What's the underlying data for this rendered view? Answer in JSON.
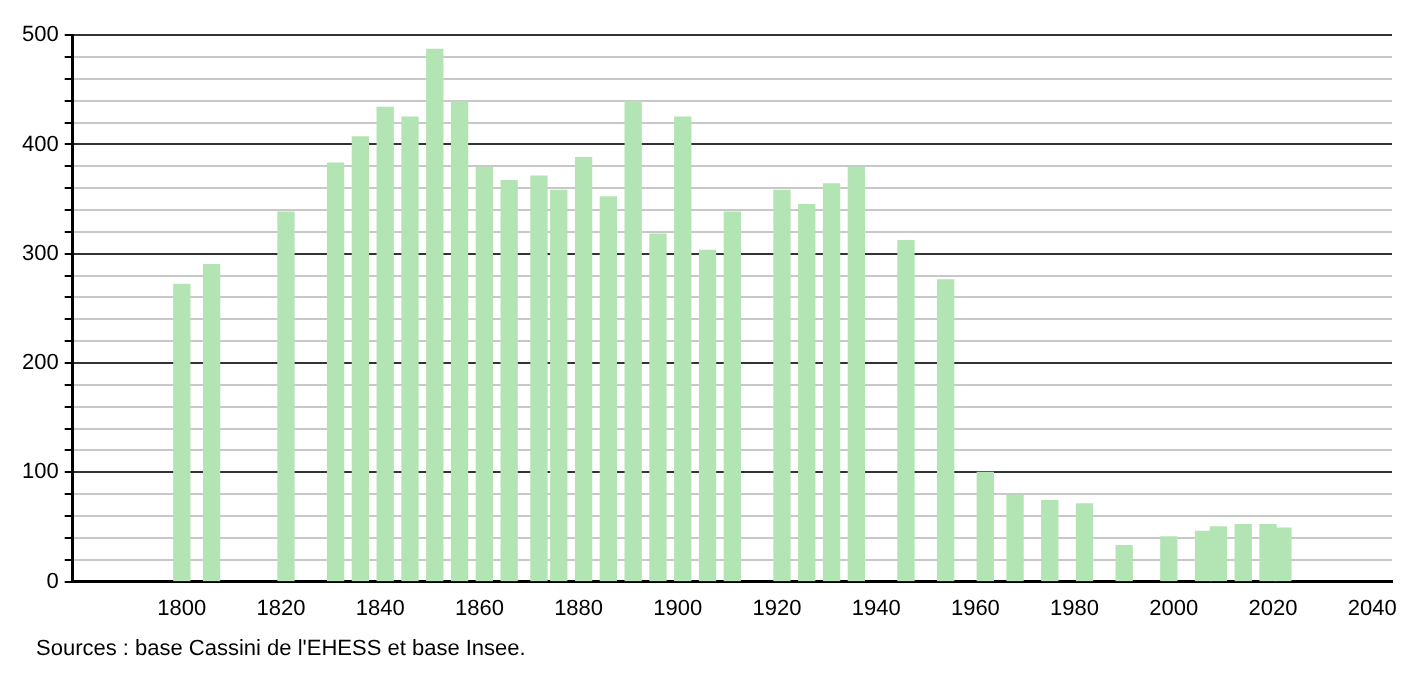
{
  "chart_data": {
    "type": "bar",
    "x": [
      1800,
      1806,
      1821,
      1831,
      1836,
      1841,
      1846,
      1851,
      1856,
      1861,
      1866,
      1872,
      1876,
      1881,
      1886,
      1891,
      1896,
      1901,
      1906,
      1911,
      1921,
      1926,
      1931,
      1936,
      1946,
      1954,
      1962,
      1968,
      1975,
      1982,
      1990,
      1999,
      2006,
      2009,
      2014,
      2019,
      2022
    ],
    "values": [
      272,
      290,
      338,
      383,
      407,
      434,
      425,
      487,
      439,
      379,
      367,
      371,
      358,
      388,
      352,
      439,
      318,
      425,
      303,
      338,
      358,
      345,
      364,
      379,
      312,
      276,
      100,
      79,
      74,
      71,
      33,
      41,
      46,
      50,
      52,
      52,
      49
    ],
    "color": "#b3e4b3",
    "xlim": [
      1778,
      2044
    ],
    "xticks": [
      1800,
      1820,
      1840,
      1860,
      1880,
      1900,
      1920,
      1940,
      1960,
      1980,
      2000,
      2020,
      2040
    ],
    "ylim": [
      0,
      500
    ],
    "yticks": [
      0,
      {
        "value": 20,
        "label": null
      },
      {
        "value": 40,
        "label": null
      },
      {
        "value": 60,
        "label": null
      },
      {
        "value": 80,
        "label": null
      },
      100,
      {
        "value": 120,
        "label": null
      },
      {
        "value": 140,
        "label": null
      },
      {
        "value": 160,
        "label": null
      },
      {
        "value": 180,
        "label": null
      },
      200,
      {
        "value": 220,
        "label": null
      },
      {
        "value": 240,
        "label": null
      },
      {
        "value": 260,
        "label": null
      },
      {
        "value": 280,
        "label": null
      },
      300,
      {
        "value": 320,
        "label": null
      },
      {
        "value": 340,
        "label": null
      },
      {
        "value": 360,
        "label": null
      },
      {
        "value": 380,
        "label": null
      },
      400,
      {
        "value": 420,
        "label": null
      },
      {
        "value": 440,
        "label": null
      },
      {
        "value": 460,
        "label": null
      },
      {
        "value": 480,
        "label": null
      },
      500
    ],
    "grid": "y",
    "annotations": [
      "Sources : base Cassini de l'EHESS et base Insee."
    ]
  }
}
